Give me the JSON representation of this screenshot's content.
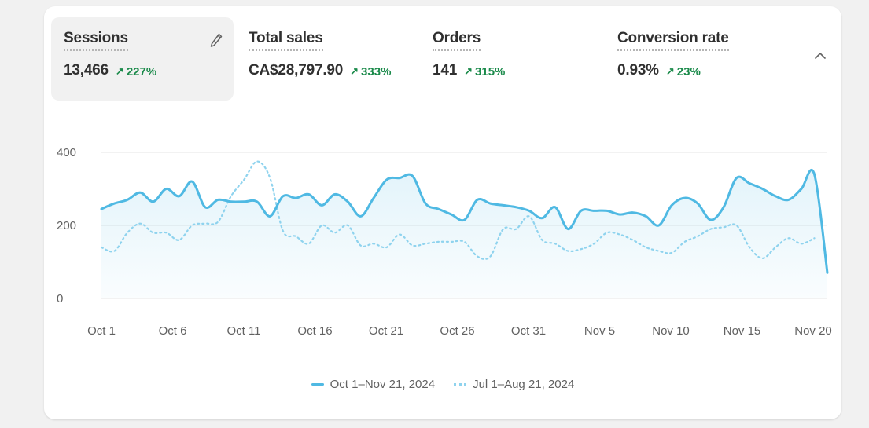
{
  "metrics": [
    {
      "label": "Sessions",
      "value": "13,466",
      "change": "227%",
      "active": true
    },
    {
      "label": "Total sales",
      "value": "CA$28,797.90",
      "change": "333%",
      "active": false
    },
    {
      "label": "Orders",
      "value": "141",
      "change": "315%",
      "active": false
    },
    {
      "label": "Conversion rate",
      "value": "0.93%",
      "change": "23%",
      "active": false
    }
  ],
  "colors": {
    "current": "#4fb9e3",
    "previous": "#8fd3ee",
    "positive": "#1a8a4a"
  },
  "icons": {
    "edit": "pencil-icon",
    "collapse": "chevron-up-icon",
    "trend": "arrow-up-right-icon"
  },
  "chart_data": {
    "type": "line",
    "xlabel": "",
    "ylabel": "",
    "ylim": [
      0,
      400
    ],
    "yticks": [
      "0",
      "200",
      "400"
    ],
    "xticks": [
      "Oct 1",
      "Oct 6",
      "Oct 11",
      "Oct 16",
      "Oct 21",
      "Oct 26",
      "Oct 31",
      "Nov 5",
      "Nov 10",
      "Nov 15",
      "Nov 20"
    ],
    "grid": true,
    "legend_position": "bottom-center",
    "series": [
      {
        "name": "Oct 1–Nov 21, 2024",
        "style": "solid-area",
        "values": [
          245,
          260,
          270,
          290,
          265,
          300,
          280,
          320,
          250,
          270,
          265,
          265,
          265,
          225,
          280,
          275,
          285,
          255,
          285,
          265,
          225,
          275,
          325,
          330,
          335,
          260,
          245,
          230,
          215,
          270,
          260,
          255,
          250,
          240,
          220,
          250,
          190,
          240,
          240,
          240,
          230,
          235,
          225,
          200,
          255,
          275,
          260,
          215,
          250,
          330,
          315,
          300,
          280,
          270,
          300,
          340,
          70
        ]
      },
      {
        "name": "Jul 1–Aug 21, 2024",
        "style": "dotted",
        "values": [
          140,
          130,
          180,
          205,
          180,
          180,
          160,
          200,
          205,
          210,
          280,
          325,
          375,
          330,
          185,
          170,
          150,
          200,
          180,
          200,
          145,
          150,
          140,
          175,
          145,
          150,
          155,
          155,
          155,
          115,
          115,
          190,
          190,
          225,
          160,
          150,
          130,
          135,
          150,
          180,
          175,
          160,
          140,
          130,
          125,
          155,
          170,
          190,
          195,
          200,
          140,
          110,
          140,
          165,
          150,
          165
        ]
      }
    ]
  }
}
